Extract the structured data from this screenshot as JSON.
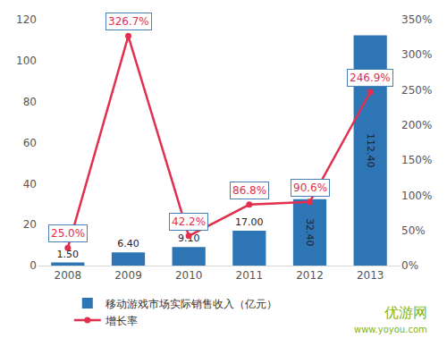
{
  "chart_data": {
    "type": "bar",
    "categories": [
      "2008",
      "2009",
      "2010",
      "2011",
      "2012",
      "2013"
    ],
    "series": [
      {
        "name": "移动游戏市场实际销售收入（亿元）",
        "type": "bar",
        "color": "#2e75b6",
        "values": [
          1.5,
          6.4,
          9.1,
          17,
          32.4,
          112.4
        ],
        "value_labels": [
          "1.50",
          "6.40",
          "9.10",
          "17.00",
          "32.40",
          "112.40"
        ]
      },
      {
        "name": "增长率",
        "type": "line",
        "axis": "y2",
        "color": "#e0304e",
        "marker": "circle",
        "values": [
          25,
          326.7,
          42.2,
          86.8,
          90.6,
          246.9
        ],
        "value_labels": [
          "25.0%",
          "326.7%",
          "42.2%",
          "86.8%",
          "90.6%",
          "246.9%"
        ]
      }
    ],
    "ylim": [
      0,
      120
    ],
    "yticks": [
      0,
      20,
      40,
      60,
      80,
      100,
      120
    ],
    "y2lim": [
      0,
      350
    ],
    "y2ticks": [
      {
        "value": 0,
        "label": "0%"
      },
      {
        "value": 50,
        "label": "50%"
      },
      {
        "value": 100,
        "label": "100%"
      },
      {
        "value": 150,
        "label": "150%"
      },
      {
        "value": 200,
        "label": "200%"
      },
      {
        "value": 250,
        "label": "250%"
      },
      {
        "value": 300,
        "label": "300%"
      },
      {
        "value": 350,
        "label": "350%"
      }
    ],
    "grid": false,
    "legend": "bottom",
    "data_labels": true,
    "annotations": [
      "优游网",
      "www.yoyou.com"
    ]
  }
}
